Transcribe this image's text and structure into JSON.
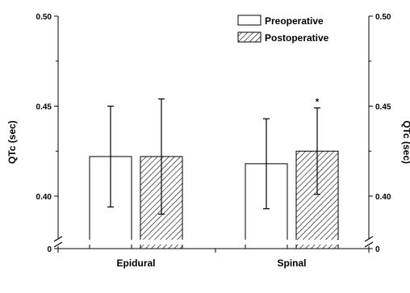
{
  "chart_data": {
    "type": "bar",
    "categories": [
      "Epidural",
      "Spinal"
    ],
    "series": [
      {
        "name": "Preoperative",
        "values": [
          0.422,
          0.418
        ],
        "errors": [
          0.028,
          0.025
        ],
        "fill": "white"
      },
      {
        "name": "Postoperative",
        "values": [
          0.422,
          0.425
        ],
        "errors": [
          0.032,
          0.024
        ],
        "fill": "hatched"
      }
    ],
    "ylabel": "QTc (sec)",
    "ylabel_right": "QTc (sec)",
    "ylim": [
      0.38,
      0.5
    ],
    "axis_break": true,
    "yticks_upper": [
      "0.40",
      "0.45",
      "0.50"
    ],
    "ytick_lower": "0",
    "legend_position": "top-right",
    "annotations": [
      {
        "category": "Spinal",
        "series": "Postoperative",
        "text": "*"
      }
    ],
    "colors": {
      "bar_stroke": "#000000",
      "hatch": "#000000",
      "background": "#ffffff"
    }
  }
}
